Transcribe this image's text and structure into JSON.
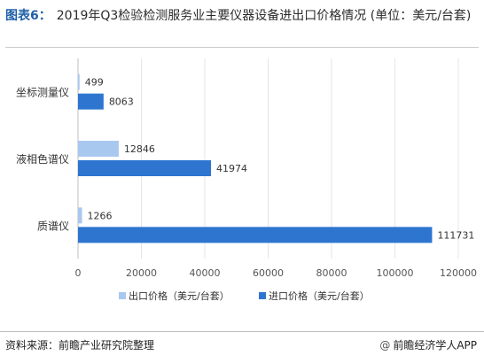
{
  "header": {
    "figure_label": "图表6：",
    "title": "2019年Q3检验检测服务业主要仪器设备进出口价格情况 (单位：美元/台套)"
  },
  "footer": {
    "source": "资料来源：前瞻产业研究院整理",
    "brand_at": "@",
    "brand": "前瞻经济学人APP"
  },
  "colors": {
    "export": "#a9c8f0",
    "import": "#2e75d0",
    "axis": "#bfbfbf",
    "grid": "#e6e6e6"
  },
  "chart_data": {
    "type": "bar",
    "orientation": "horizontal",
    "categories": [
      "坐标测量仪",
      "液相色谱仪",
      "质谱仪"
    ],
    "series": [
      {
        "name": "出口价格（美元/台套）",
        "values": [
          499,
          12846,
          1266
        ]
      },
      {
        "name": "进口价格（美元/台套）",
        "values": [
          8063,
          41974,
          111731
        ]
      }
    ],
    "xlim": [
      0,
      120000
    ],
    "xticks": [
      "0",
      "20000",
      "40000",
      "60000",
      "80000",
      "100000",
      "120000"
    ],
    "grid": true,
    "legend_position": "bottom"
  }
}
